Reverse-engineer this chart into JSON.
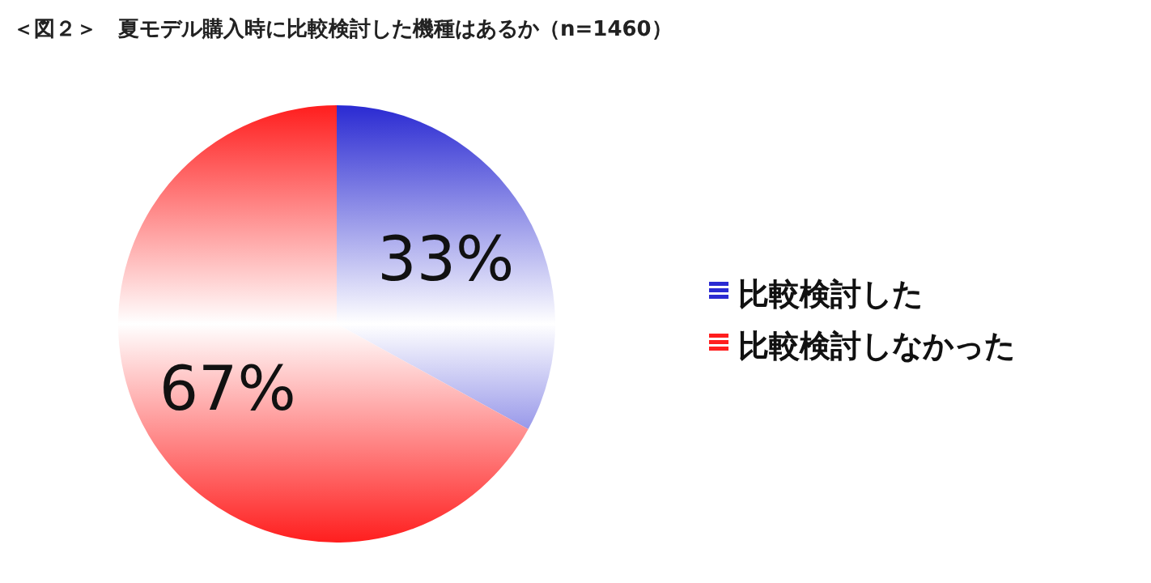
{
  "chart_data": {
    "type": "pie",
    "title": "＜図２＞　夏モデル購入時に比較検討した機種はあるか（n=1460）",
    "categories": [
      "比較検討した",
      "比較検討しなかった"
    ],
    "values": [
      33,
      67
    ],
    "value_labels": [
      "33%",
      "67%"
    ],
    "colors": [
      "#2a2ad2",
      "#ff1e1e"
    ],
    "legend": "right"
  }
}
